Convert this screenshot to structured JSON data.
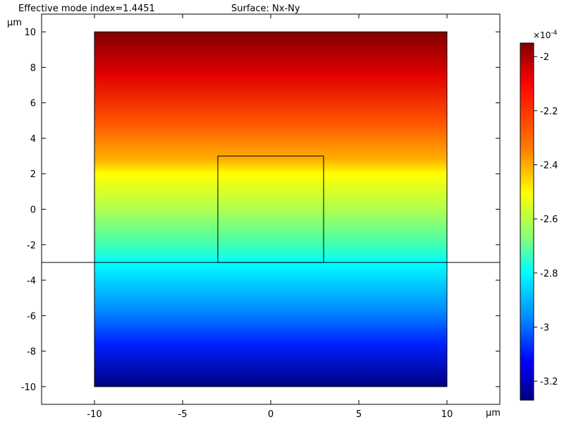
{
  "header": {
    "title_left": "Effective mode index=1.4451",
    "title_right": "Surface: Nx-Ny"
  },
  "axes": {
    "x_unit": "μm",
    "y_unit": "μm"
  },
  "colorbar": {
    "multiplier": "×10",
    "exponent": "-4",
    "ticks": [
      -2,
      -2.2,
      -2.4,
      -2.6,
      -2.8,
      -3,
      -3.2
    ],
    "range": [
      -3.27,
      -1.95
    ],
    "colormap": "rainbow"
  },
  "chart_data": {
    "type": "heatmap",
    "title": "Surface: Nx-Ny",
    "subtitle": "Effective mode index=1.4451",
    "xlim": [
      -13,
      13
    ],
    "ylim": [
      -11,
      11
    ],
    "x_ticks": [
      -10,
      -5,
      0,
      5,
      10
    ],
    "y_ticks": [
      10,
      8,
      6,
      4,
      2,
      0,
      -2,
      -4,
      -6,
      -8,
      -10
    ],
    "xlabel": "μm",
    "ylabel": "μm",
    "field": {
      "x_range": [
        -10,
        10
      ],
      "y_range": [
        -10,
        10
      ],
      "gradient_direction": "vertical",
      "value_at_y": [
        {
          "y": 10,
          "value": -1.96
        },
        {
          "y": 5,
          "value": -2.2
        },
        {
          "y": 2,
          "value": -2.4
        },
        {
          "y": 0,
          "value": -2.58
        },
        {
          "y": -3,
          "value": -2.8
        },
        {
          "y": -5,
          "value": -2.9
        },
        {
          "y": -8,
          "value": -3.1
        },
        {
          "y": -10,
          "value": -3.24
        }
      ],
      "unit_multiplier": "1e-4"
    },
    "geometry": {
      "outer_rect": {
        "x": [
          -10,
          10
        ],
        "y": [
          -10,
          10
        ]
      },
      "core_rect": {
        "x": [
          -3,
          3
        ],
        "y": [
          -3,
          3
        ]
      },
      "substrate_line_y": -3
    },
    "grid": false,
    "legend": "none"
  }
}
